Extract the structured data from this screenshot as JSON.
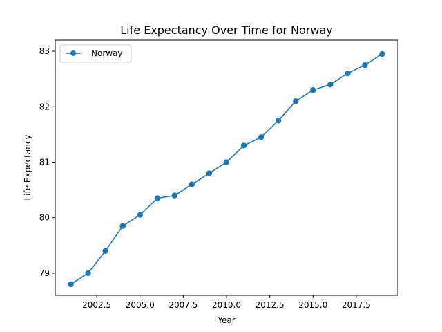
{
  "chart_data": {
    "type": "line",
    "title": "Life Expectancy Over Time for Norway",
    "xlabel": "Year",
    "ylabel": "Life Expectancy",
    "xlim": [
      2000.1,
      2019.9
    ],
    "ylim": [
      78.6,
      83.2
    ],
    "xticks": [
      2002.5,
      2005.0,
      2007.5,
      2010.0,
      2012.5,
      2015.0,
      2017.5
    ],
    "xtick_labels": [
      "2002.5",
      "2005.0",
      "2007.5",
      "2010.0",
      "2012.5",
      "2015.0",
      "2017.5"
    ],
    "yticks": [
      79,
      80,
      81,
      82,
      83
    ],
    "ytick_labels": [
      "79",
      "80",
      "81",
      "82",
      "83"
    ],
    "grid": false,
    "legend_position": "top-left",
    "series": [
      {
        "name": "Norway",
        "color": "#1f77b4",
        "marker": "circle",
        "x": [
          2001,
          2002,
          2003,
          2004,
          2005,
          2006,
          2007,
          2008,
          2009,
          2010,
          2011,
          2012,
          2013,
          2014,
          2015,
          2016,
          2017,
          2018,
          2019
        ],
        "y": [
          78.8,
          79.0,
          79.4,
          79.85,
          80.05,
          80.35,
          80.4,
          80.6,
          80.8,
          81.0,
          81.3,
          81.45,
          81.75,
          82.1,
          82.3,
          82.4,
          82.6,
          82.75,
          82.95
        ]
      }
    ]
  }
}
